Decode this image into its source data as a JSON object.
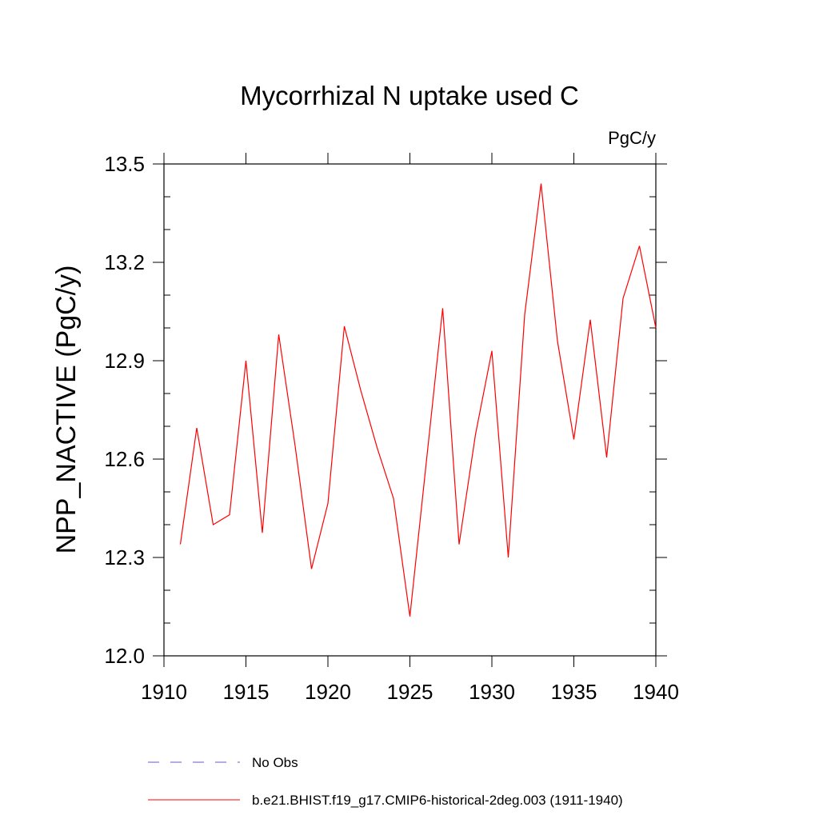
{
  "chart_data": {
    "type": "line",
    "title": "Mycorrhizal N uptake used C",
    "units": "PgC/y",
    "ylabel": "NPP_NACTIVE  (PgC/y)",
    "xlabel": "",
    "xlim": [
      1910,
      1940
    ],
    "ylim": [
      12.0,
      13.5
    ],
    "x_ticks": [
      "1910",
      "1915",
      "1920",
      "1925",
      "1930",
      "1935",
      "1940"
    ],
    "y_ticks": [
      "12.0",
      "12.3",
      "12.6",
      "12.9",
      "13.2",
      "13.5"
    ],
    "series": [
      {
        "name": "No Obs",
        "color": "#6a5acd",
        "dash": "dashed",
        "x": [],
        "values": []
      },
      {
        "name": "b.e21.BHIST.f19_g17.CMIP6-historical-2deg.003 (1911-1940)",
        "color": "#ff0000",
        "dash": "solid",
        "x": [
          1911,
          1912,
          1913,
          1914,
          1915,
          1916,
          1917,
          1918,
          1919,
          1920,
          1921,
          1922,
          1923,
          1924,
          1925,
          1926,
          1927,
          1928,
          1929,
          1930,
          1931,
          1932,
          1933,
          1934,
          1935,
          1936,
          1937,
          1938,
          1939,
          1940
        ],
        "values": [
          12.34,
          12.695,
          12.4,
          12.43,
          12.9,
          12.375,
          12.98,
          12.64,
          12.265,
          12.465,
          13.005,
          12.81,
          12.635,
          12.48,
          12.12,
          12.59,
          13.06,
          12.34,
          12.675,
          12.93,
          12.3,
          13.04,
          13.44,
          12.96,
          12.66,
          13.025,
          12.605,
          13.09,
          13.25,
          13.0
        ]
      }
    ],
    "legend_position": "bottom"
  }
}
